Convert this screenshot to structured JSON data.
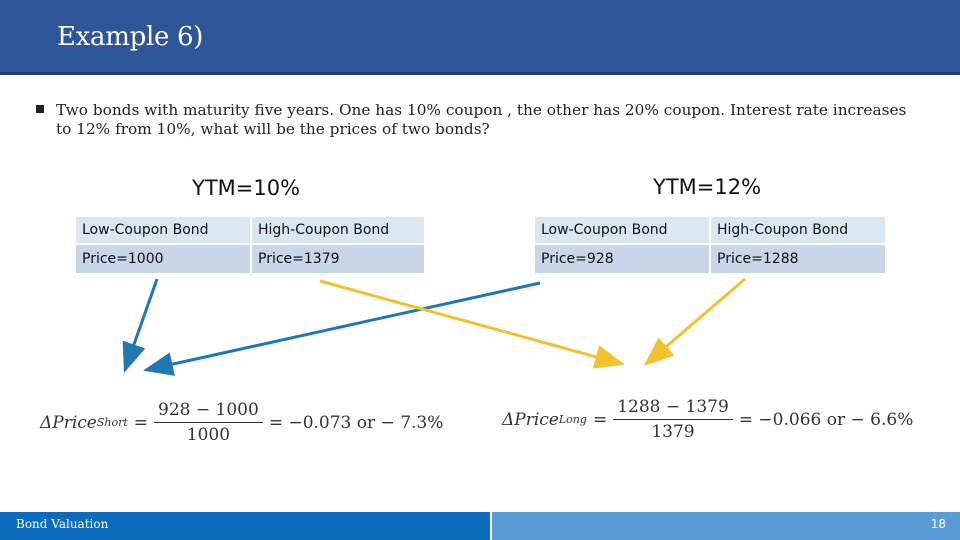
{
  "slide": {
    "title": "Example 6)",
    "bullet": "Two bonds with maturity five years. One has 10% coupon , the other has 20% coupon. Interest rate increases to 12% from 10%, what will be the prices of two bonds?"
  },
  "ytm10": {
    "label": "YTM=10%",
    "headers": [
      "Low-Coupon Bond",
      "High-Coupon Bond"
    ],
    "prices": [
      "Price=1000",
      "Price=1379"
    ]
  },
  "ytm12": {
    "label": "YTM=12%",
    "headers": [
      "Low-Coupon Bond",
      "High-Coupon Bond"
    ],
    "prices": [
      "Price=928",
      "Price=1288"
    ]
  },
  "formula_short": {
    "lhs": "ΔPrice",
    "sup": "Short",
    "num": "928 − 1000",
    "den": "1000",
    "rhs": "= −0.073 or  − 7.3%"
  },
  "formula_long": {
    "lhs": "ΔPrice",
    "sup": "Long",
    "num": "1288 − 1379",
    "den": "1379",
    "rhs": "= −0.066 or  − 6.6%"
  },
  "footer": {
    "label": "Bond Valuation",
    "page": "18"
  },
  "colors": {
    "header": "#2e5597",
    "blue_arrow": "#1f77b4",
    "yellow_arrow": "#f2c12e",
    "footer_left": "#0b6bbd",
    "footer_right": "#5b9bd5"
  }
}
